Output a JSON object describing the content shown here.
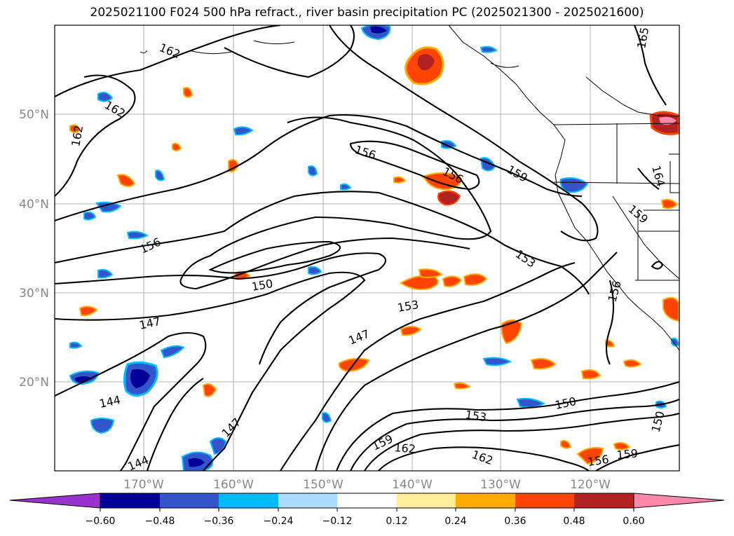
{
  "title": "2025021100 F024 500 hPa refract., river basin precipitation PC (2025021300 - 2025021600)",
  "map": {
    "lat_labels": [
      "50°N",
      "40°N",
      "30°N",
      "20°N"
    ],
    "lon_labels": [
      "170°W",
      "160°W",
      "150°W",
      "140°W",
      "130°W",
      "120°W"
    ],
    "contour_labels": [
      "162",
      "162",
      "162",
      "165",
      "156",
      "156",
      "159",
      "164",
      "159",
      "156",
      "153",
      "150",
      "147",
      "153",
      "147",
      "156",
      "144",
      "147",
      "144",
      "153",
      "150",
      "159",
      "162",
      "162",
      "156",
      "159",
      "150"
    ]
  },
  "colorbar": {
    "colors": [
      "#9933cc",
      "#000099",
      "#3355cc",
      "#00bbff",
      "#aaddff",
      "#ffffff",
      "#ffee99",
      "#ffaa00",
      "#ff4400",
      "#b22222",
      "#ff88aa"
    ],
    "tick_labels": [
      "−0.60",
      "−0.48",
      "−0.36",
      "−0.24",
      "−0.12",
      "0.12",
      "0.24",
      "0.36",
      "0.48",
      "0.60"
    ]
  }
}
